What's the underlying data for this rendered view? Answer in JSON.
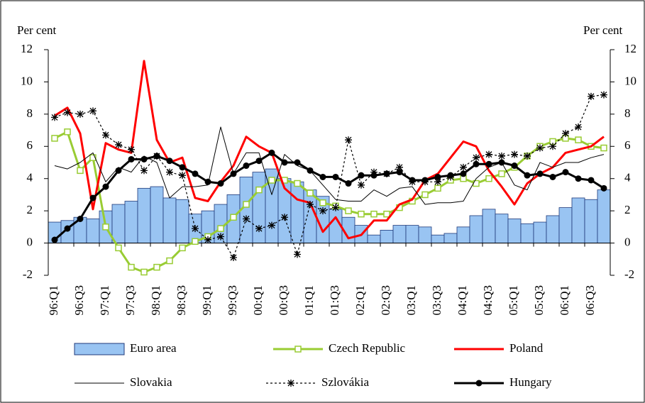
{
  "chart_data": {
    "type": "combo",
    "ylabel": "Per cent",
    "y2label": "Per cent",
    "categories": [
      "96:Q1",
      null,
      "96:Q3",
      null,
      "97:Q1",
      null,
      "97:Q3",
      null,
      "98:Q1",
      null,
      "98:Q3",
      null,
      "99:Q1",
      null,
      "99:Q3",
      null,
      "00:Q1",
      null,
      "00:Q3",
      null,
      "01:Q1",
      null,
      "01:Q3",
      null,
      "02:Q1",
      null,
      "02:Q3",
      null,
      "03:Q1",
      null,
      "03:Q3",
      null,
      "04:Q1",
      null,
      "04:Q3",
      null,
      "05:Q1",
      null,
      "05:Q3",
      null,
      "06:Q1",
      null,
      "06:Q3",
      null
    ],
    "ylim": [
      -2,
      12
    ],
    "yticks": [
      -2,
      0,
      2,
      4,
      6,
      8,
      10,
      12
    ],
    "y2lim": [
      -2,
      12
    ],
    "y2ticks": [
      -2,
      0,
      2,
      4,
      6,
      8,
      10,
      12
    ],
    "series": [
      {
        "name": "Euro area",
        "kind": "bar",
        "color": "#99c4f2",
        "edge": "#1f3a7a",
        "values": [
          1.3,
          1.4,
          1.6,
          1.5,
          2.0,
          2.4,
          2.6,
          3.4,
          3.5,
          2.8,
          2.7,
          1.8,
          2.0,
          2.4,
          3.0,
          4.1,
          4.4,
          4.6,
          4.0,
          3.8,
          3.3,
          2.9,
          2.1,
          1.6,
          1.1,
          0.5,
          0.8,
          1.1,
          1.1,
          1.0,
          0.5,
          0.6,
          1.0,
          1.7,
          2.1,
          1.8,
          1.5,
          1.2,
          1.3,
          1.7,
          2.2,
          2.8,
          2.7,
          3.3
        ]
      },
      {
        "name": "Czech Republic",
        "kind": "line",
        "marker": "square",
        "color": "#99cc33",
        "width": 3,
        "values": [
          6.5,
          6.9,
          4.5,
          5.3,
          1.0,
          -0.3,
          -1.5,
          -1.8,
          -1.5,
          -1.1,
          -0.3,
          0.1,
          0.4,
          0.9,
          1.6,
          2.4,
          3.3,
          3.9,
          3.9,
          3.7,
          3.1,
          2.5,
          2.3,
          2.0,
          1.8,
          1.8,
          1.8,
          2.2,
          2.6,
          3.0,
          3.4,
          3.9,
          4.0,
          3.7,
          4.0,
          4.3,
          4.7,
          5.4,
          6.0,
          6.3,
          6.5,
          6.4,
          6.0,
          5.9
        ]
      },
      {
        "name": "Poland",
        "kind": "line",
        "color": "#ff0000",
        "width": 3,
        "values": [
          7.9,
          8.4,
          6.8,
          2.1,
          6.2,
          5.8,
          5.6,
          11.3,
          6.4,
          5.0,
          5.3,
          2.8,
          2.6,
          3.8,
          4.8,
          6.6,
          6.0,
          5.6,
          3.4,
          2.7,
          2.5,
          0.7,
          1.6,
          0.3,
          0.5,
          1.4,
          1.4,
          2.4,
          2.7,
          3.9,
          4.3,
          5.3,
          6.3,
          6.0,
          4.5,
          3.5,
          2.4,
          3.7,
          4.3,
          4.7,
          5.6,
          5.8,
          6.0,
          6.6
        ]
      },
      {
        "name": "Slovakia",
        "kind": "line",
        "color": "#000000",
        "width": 1,
        "values": [
          4.8,
          4.6,
          5.0,
          5.6,
          3.8,
          4.7,
          4.4,
          5.4,
          5.0,
          2.8,
          3.5,
          3.5,
          3.6,
          7.2,
          4.3,
          5.6,
          5.6,
          3.0,
          5.5,
          4.8,
          4.5,
          3.6,
          2.7,
          2.6,
          2.6,
          3.3,
          2.9,
          3.4,
          3.5,
          2.4,
          2.5,
          2.5,
          2.6,
          4.0,
          4.7,
          5.0,
          3.6,
          3.3,
          5.0,
          4.7,
          5.0,
          5.0,
          5.3,
          5.5
        ]
      },
      {
        "name": "Szlovákia",
        "kind": "line",
        "marker": "star",
        "dash": true,
        "color": "#000000",
        "width": 1.2,
        "values": [
          7.8,
          8.1,
          8.0,
          8.2,
          6.7,
          6.1,
          5.8,
          4.5,
          5.4,
          4.4,
          4.2,
          0.9,
          0.2,
          0.4,
          -0.9,
          1.5,
          0.9,
          1.1,
          1.6,
          -0.7,
          2.4,
          2.0,
          2.2,
          6.4,
          3.6,
          4.4,
          4.3,
          4.7,
          3.8,
          3.8,
          3.8,
          4.1,
          4.7,
          5.3,
          5.5,
          5.4,
          5.5,
          5.4,
          5.9,
          6.0,
          6.8,
          7.2,
          9.1,
          9.2
        ]
      },
      {
        "name": "Hungary",
        "kind": "line",
        "marker": "circle",
        "color": "#000000",
        "width": 3,
        "values": [
          0.2,
          0.9,
          1.5,
          2.8,
          3.5,
          4.5,
          5.2,
          5.2,
          5.4,
          5.1,
          4.7,
          4.3,
          3.8,
          3.7,
          4.3,
          4.8,
          5.1,
          5.6,
          5.0,
          5.0,
          4.5,
          4.1,
          4.1,
          3.7,
          4.2,
          4.2,
          4.3,
          4.4,
          3.9,
          3.9,
          4.1,
          4.2,
          4.3,
          4.9,
          4.9,
          5.0,
          4.8,
          4.2,
          4.3,
          4.1,
          4.4,
          4.0,
          3.9,
          3.4
        ]
      }
    ]
  }
}
